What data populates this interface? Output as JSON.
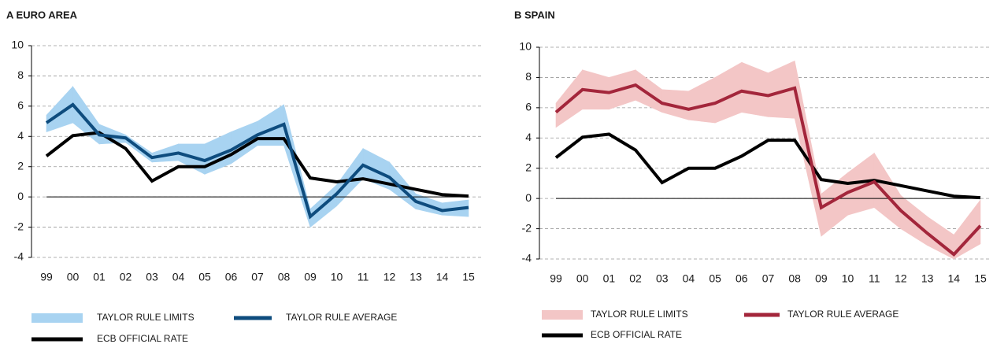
{
  "chart_data": [
    {
      "type": "line",
      "title": "A  EURO AREA",
      "categories": [
        "99",
        "00",
        "01",
        "02",
        "03",
        "04",
        "05",
        "06",
        "07",
        "08",
        "09",
        "10",
        "11",
        "12",
        "13",
        "14",
        "15"
      ],
      "ylim": [
        -4,
        10
      ],
      "yticks": [
        -4,
        -2,
        0,
        2,
        4,
        6,
        8,
        10
      ],
      "grid": true,
      "legend": "bottom",
      "series": [
        {
          "name": "TAYLOR RULE LIMITS",
          "kind": "band",
          "color": "#a8d3f1",
          "upper": [
            5.4,
            7.3,
            4.8,
            4.1,
            2.9,
            3.5,
            3.5,
            4.3,
            5.0,
            6.1,
            -0.8,
            0.8,
            3.2,
            2.3,
            0.2,
            -0.4,
            -0.2
          ],
          "lower": [
            4.3,
            4.9,
            3.5,
            3.6,
            2.3,
            2.4,
            1.5,
            2.2,
            3.4,
            3.4,
            -2.0,
            -0.6,
            1.2,
            0.5,
            -0.8,
            -1.2,
            -1.3
          ]
        },
        {
          "name": "TAYLOR RULE AVERAGE",
          "kind": "line",
          "color": "#0e4c7e",
          "values": [
            4.9,
            6.1,
            4.1,
            3.9,
            2.6,
            2.9,
            2.4,
            3.1,
            4.1,
            4.8,
            -1.3,
            0.2,
            2.1,
            1.3,
            -0.3,
            -0.9,
            -0.7
          ]
        },
        {
          "name": "ECB OFFICIAL RATE",
          "kind": "line",
          "color": "#000000",
          "values": [
            2.7,
            4.05,
            4.25,
            3.2,
            1.05,
            2.0,
            2.0,
            2.8,
            3.85,
            3.85,
            1.25,
            1.0,
            1.2,
            0.85,
            0.5,
            0.15,
            0.05
          ]
        }
      ]
    },
    {
      "type": "line",
      "title": "B  SPAIN",
      "categories": [
        "99",
        "00",
        "01",
        "02",
        "03",
        "04",
        "05",
        "06",
        "07",
        "08",
        "09",
        "10",
        "11",
        "12",
        "13",
        "14",
        "15"
      ],
      "ylim": [
        -4,
        10
      ],
      "yticks": [
        -4,
        -2,
        0,
        2,
        4,
        6,
        8,
        10
      ],
      "grid": true,
      "legend": "bottom",
      "series": [
        {
          "name": "TAYLOR RULE LIMITS",
          "kind": "band",
          "color": "#f3c6c6",
          "upper": [
            6.3,
            8.5,
            8.0,
            8.5,
            7.2,
            7.1,
            8.0,
            9.0,
            8.3,
            9.1,
            0.3,
            1.7,
            3.0,
            0.2,
            -1.2,
            -2.4,
            -0.1
          ],
          "lower": [
            4.7,
            5.9,
            5.9,
            6.5,
            5.7,
            5.2,
            5.0,
            5.7,
            5.4,
            5.3,
            -2.5,
            -1.1,
            -0.6,
            -2.0,
            -3.1,
            -4.0,
            -3.0
          ]
        },
        {
          "name": "TAYLOR RULE AVERAGE",
          "kind": "line",
          "color": "#a3263b",
          "values": [
            5.7,
            7.2,
            7.0,
            7.5,
            6.3,
            5.9,
            6.3,
            7.1,
            6.8,
            7.3,
            -0.6,
            0.4,
            1.1,
            -0.8,
            -2.3,
            -3.7,
            -1.8
          ]
        },
        {
          "name": "ECB OFFICIAL RATE",
          "kind": "line",
          "color": "#000000",
          "values": [
            2.7,
            4.05,
            4.25,
            3.2,
            1.05,
            2.0,
            2.0,
            2.8,
            3.85,
            3.85,
            1.25,
            1.0,
            1.2,
            0.85,
            0.5,
            0.15,
            0.05
          ]
        }
      ]
    }
  ]
}
